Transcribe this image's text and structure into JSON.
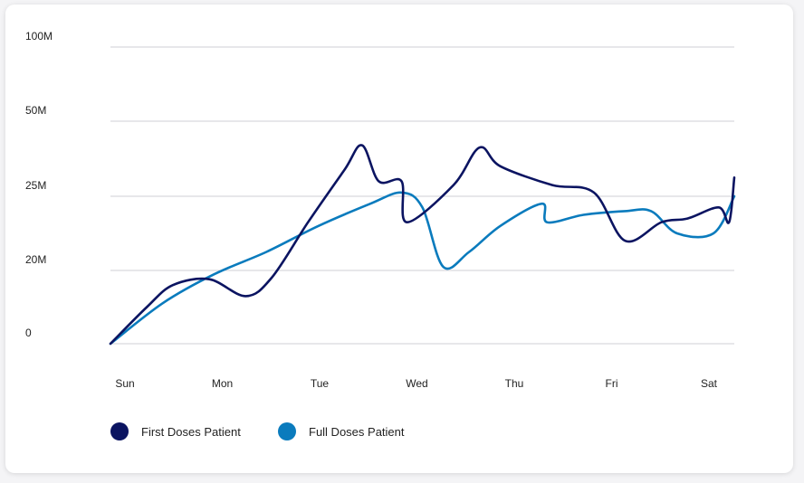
{
  "chart_data": {
    "type": "line",
    "categories": [
      "Sun",
      "Mon",
      "Tue",
      "Wed",
      "Thu",
      "Fri",
      "Sat"
    ],
    "y_ticks": [
      "0",
      "20M",
      "25M",
      "50M",
      "100M"
    ],
    "grid": true,
    "legend_position": "bottom-left",
    "series": [
      {
        "name": "First Doses Patient",
        "color": "#0b1461",
        "points": [
          [
            0.0,
            0.0
          ],
          [
            0.35,
            0.5
          ],
          [
            0.6,
            0.8
          ],
          [
            0.95,
            0.88
          ],
          [
            1.3,
            0.65
          ],
          [
            1.55,
            0.9
          ],
          [
            1.9,
            1.65
          ],
          [
            2.25,
            2.35
          ],
          [
            2.42,
            2.68
          ],
          [
            2.58,
            2.2
          ],
          [
            2.8,
            2.2
          ],
          [
            2.85,
            1.65
          ],
          [
            3.3,
            2.15
          ],
          [
            3.55,
            2.65
          ],
          [
            3.75,
            2.4
          ],
          [
            4.25,
            2.15
          ],
          [
            4.65,
            2.05
          ],
          [
            4.95,
            1.4
          ],
          [
            5.3,
            1.65
          ],
          [
            5.55,
            1.7
          ],
          [
            5.85,
            1.85
          ],
          [
            5.95,
            1.65
          ],
          [
            6.0,
            2.25
          ]
        ]
      },
      {
        "name": "Full Doses Patient",
        "color": "#0a7bbd",
        "points": [
          [
            0.0,
            0.0
          ],
          [
            0.5,
            0.55
          ],
          [
            1.0,
            0.95
          ],
          [
            1.5,
            1.25
          ],
          [
            2.0,
            1.6
          ],
          [
            2.5,
            1.9
          ],
          [
            2.8,
            2.05
          ],
          [
            3.0,
            1.85
          ],
          [
            3.2,
            1.05
          ],
          [
            3.45,
            1.25
          ],
          [
            3.75,
            1.6
          ],
          [
            4.15,
            1.9
          ],
          [
            4.2,
            1.65
          ],
          [
            4.55,
            1.75
          ],
          [
            4.95,
            1.8
          ],
          [
            5.2,
            1.8
          ],
          [
            5.45,
            1.5
          ],
          [
            5.8,
            1.5
          ],
          [
            6.0,
            2.0
          ]
        ]
      }
    ]
  }
}
